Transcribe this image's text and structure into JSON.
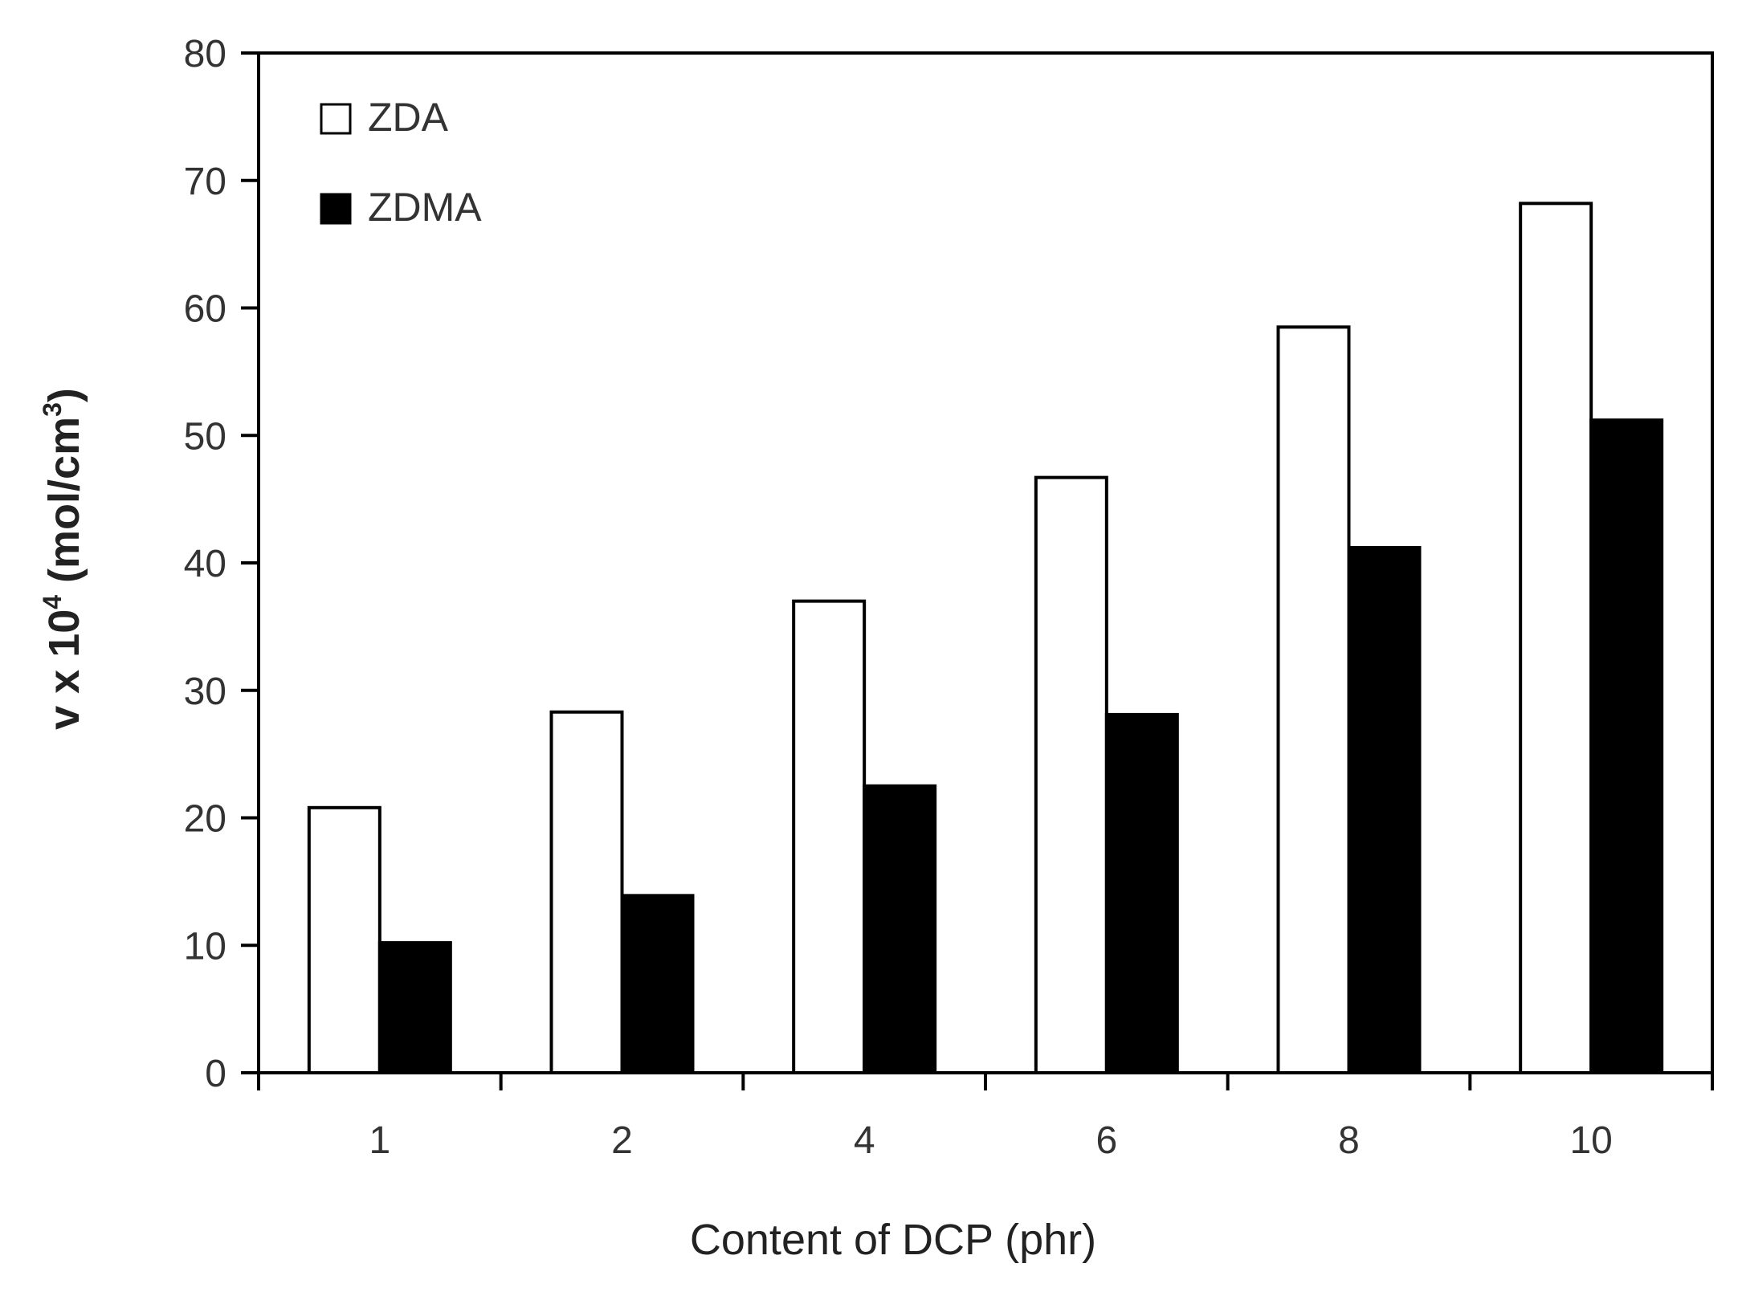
{
  "chart_data": {
    "type": "bar",
    "title": "",
    "xlabel": "Content of DCP (phr)",
    "ylabel": {
      "prefix": "v x 10",
      "sup1": "4",
      "middle": " (mol/cm",
      "sup2": "3",
      "suffix": ")"
    },
    "categories": [
      "1",
      "2",
      "4",
      "6",
      "8",
      "10"
    ],
    "series": [
      {
        "name": "ZDA",
        "values": [
          20.8,
          28.3,
          37.0,
          46.7,
          58.5,
          68.2
        ],
        "fill": "#ffffff"
      },
      {
        "name": "ZDMA",
        "values": [
          10.2,
          13.9,
          22.5,
          28.1,
          41.2,
          51.2
        ],
        "fill": "#000000"
      }
    ],
    "ylim": [
      0,
      80
    ],
    "yticks": [
      "0",
      "10",
      "20",
      "30",
      "40",
      "50",
      "60",
      "70",
      "80"
    ],
    "grid": false,
    "legend_position": "top-left"
  }
}
